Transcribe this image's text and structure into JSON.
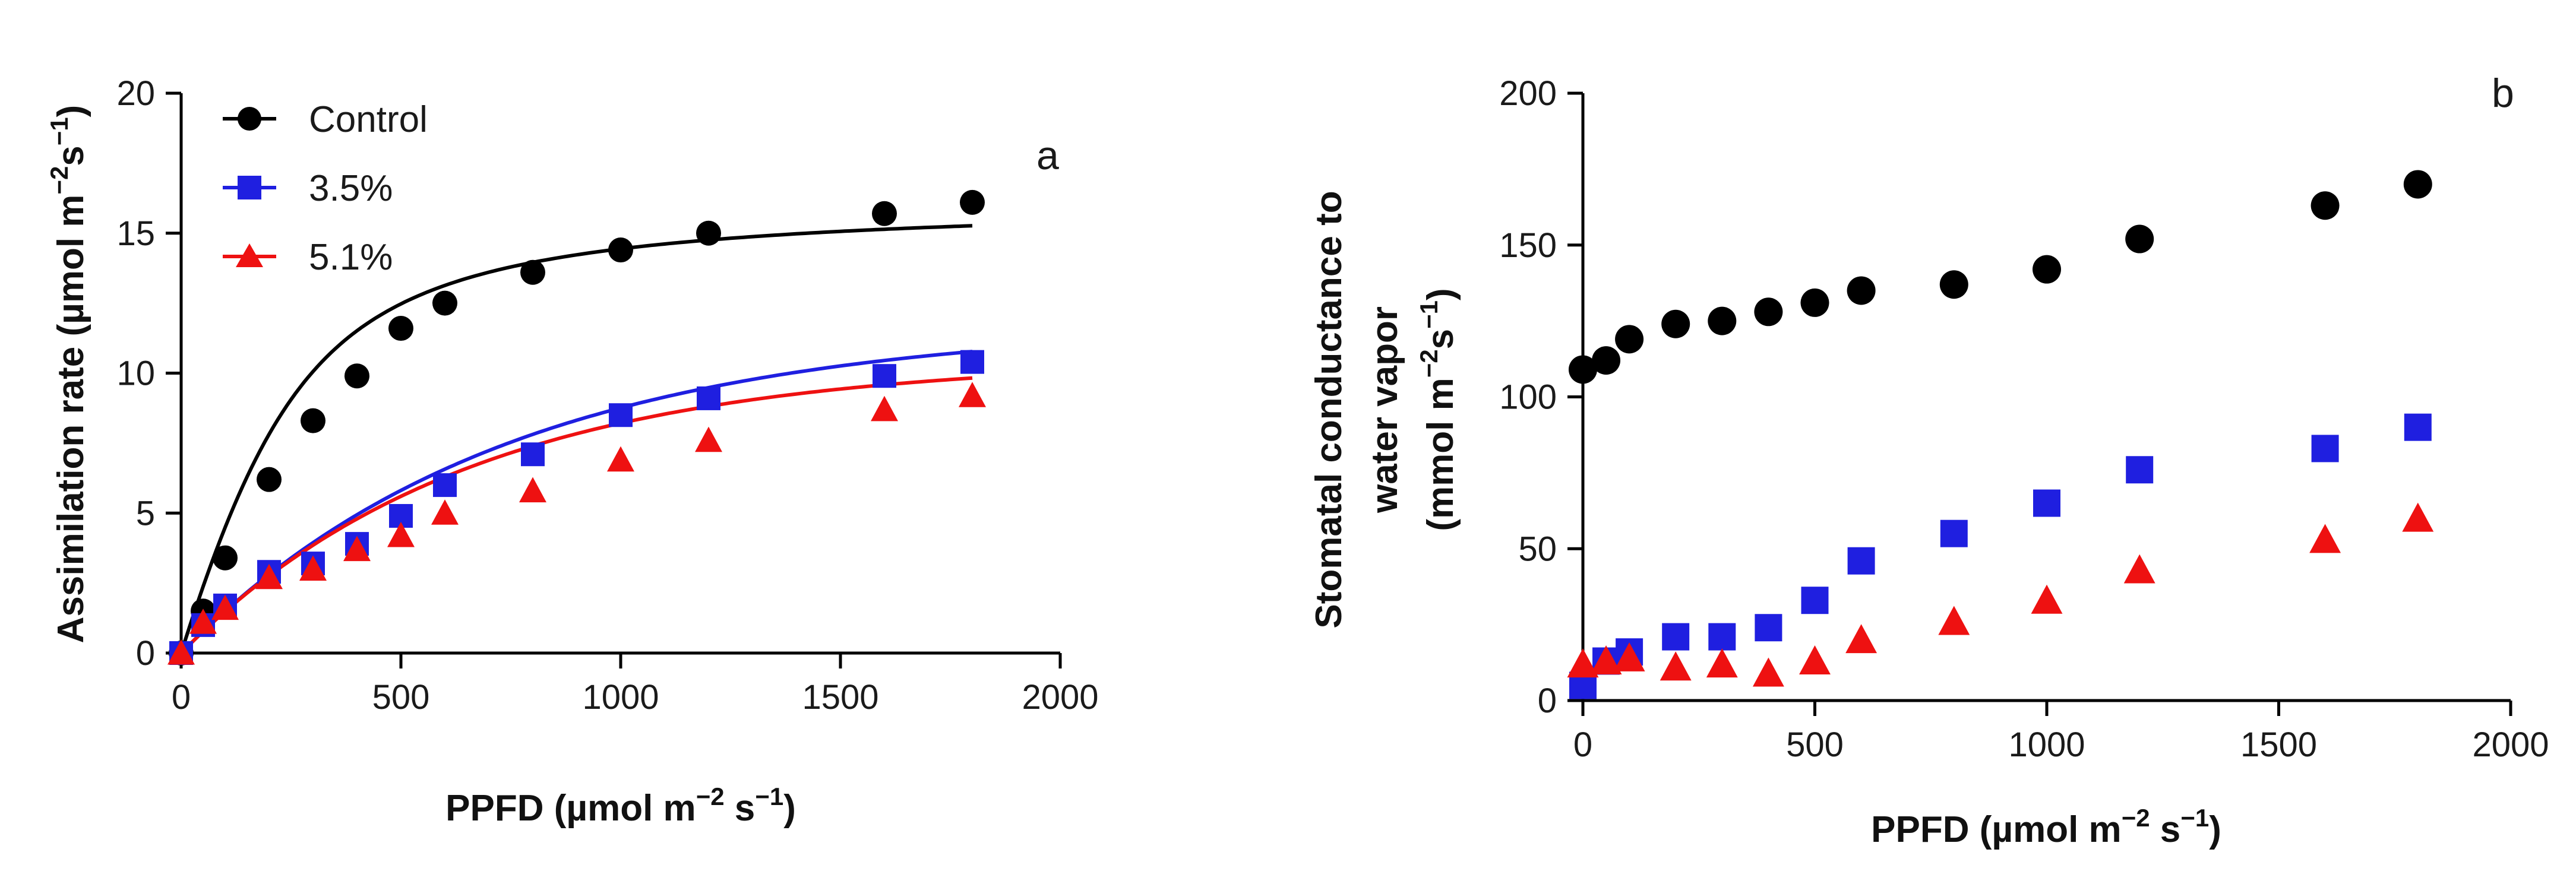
{
  "chart_data": [
    {
      "type": "line",
      "panel": "a",
      "xlabel": "PPFD (µmol m",
      "xlabel_sup": "−2",
      "xlabel_mid": " s",
      "xlabel_sup2": "−1",
      "xlabel_end": ")",
      "ylabel": "Assimilation rate (µmol m",
      "ylabel_sup": "−2",
      "ylabel_mid": "s",
      "ylabel_sup2": "−1",
      "ylabel_end": ")",
      "xlim": [
        0,
        2000
      ],
      "ylim": [
        0,
        20
      ],
      "xticks": [
        "0",
        "500",
        "1000",
        "1500",
        "2000"
      ],
      "yticks": [
        "0",
        "5",
        "10",
        "15",
        "20"
      ],
      "legend_position": "top-left",
      "series": [
        {
          "name": "Control",
          "color": "#000000",
          "marker": "circle",
          "x": [
            0,
            50,
            100,
            200,
            300,
            400,
            500,
            600,
            800,
            1000,
            1200,
            1600,
            1800
          ],
          "y": [
            0,
            1.5,
            3.4,
            6.2,
            8.3,
            9.9,
            11.6,
            12.5,
            13.6,
            14.4,
            15.0,
            15.7,
            16.1
          ],
          "fit": {
            "amax": 16.2,
            "phi": 0.05,
            "theta": 0.7
          }
        },
        {
          "name": "3.5%",
          "color": "#1f1fe0",
          "marker": "square",
          "x": [
            0,
            50,
            100,
            200,
            300,
            400,
            500,
            600,
            800,
            1000,
            1200,
            1600,
            1800
          ],
          "y": [
            0,
            1.0,
            1.7,
            2.9,
            3.2,
            3.9,
            4.9,
            6.0,
            7.1,
            8.5,
            9.1,
            9.9,
            10.4
          ],
          "fit": {
            "amax": 11.8,
            "phi": 0.016,
            "theta": 0
          }
        },
        {
          "name": "5.1%",
          "color": "#ee1111",
          "marker": "triangle",
          "x": [
            0,
            50,
            100,
            200,
            300,
            400,
            500,
            600,
            800,
            1000,
            1200,
            1600,
            1800
          ],
          "y": [
            0,
            1.1,
            1.6,
            2.7,
            3.0,
            3.7,
            4.2,
            5.0,
            5.8,
            6.9,
            7.6,
            8.7,
            9.2
          ],
          "fit": {
            "amax": 10.5,
            "phi": 0.016,
            "theta": 0
          }
        }
      ]
    },
    {
      "type": "scatter",
      "panel": "b",
      "xlabel": "PPFD (µmol m",
      "xlabel_sup": "−2",
      "xlabel_mid": " s",
      "xlabel_sup2": "−1",
      "xlabel_end": ")",
      "ylabel_line1": "Stomatal conductance to",
      "ylabel_line2": "water vapor",
      "ylabel_line3": "(mmol m",
      "ylabel_line3_sup": "−2",
      "ylabel_line3_mid": "s",
      "ylabel_line3_sup2": "−1",
      "ylabel_line3_end": ")",
      "xlim": [
        0,
        2000
      ],
      "ylim": [
        0,
        200
      ],
      "xticks": [
        "0",
        "500",
        "1000",
        "1500",
        "2000"
      ],
      "yticks": [
        "0",
        "50",
        "100",
        "150",
        "200"
      ],
      "series": [
        {
          "name": "Control",
          "color": "#000000",
          "marker": "circle",
          "x": [
            0,
            50,
            100,
            200,
            300,
            400,
            500,
            600,
            800,
            1000,
            1200,
            1600,
            1800
          ],
          "y": [
            109,
            112,
            119,
            124,
            125,
            128,
            131,
            135,
            137,
            142,
            152,
            163,
            170
          ]
        },
        {
          "name": "3.5%",
          "color": "#1f1fe0",
          "marker": "square",
          "x": [
            0,
            50,
            100,
            200,
            300,
            400,
            500,
            600,
            800,
            1000,
            1200,
            1600,
            1800
          ],
          "y": [
            5,
            13,
            16,
            21,
            21,
            24,
            33,
            46,
            55,
            65,
            76,
            83,
            90
          ]
        },
        {
          "name": "5.1%",
          "color": "#ee1111",
          "marker": "triangle",
          "x": [
            0,
            50,
            100,
            200,
            300,
            400,
            500,
            600,
            800,
            1000,
            1200,
            1600,
            1800
          ],
          "y": [
            12,
            13,
            14,
            11,
            12,
            9,
            13,
            20,
            26,
            33,
            43,
            53,
            60
          ]
        }
      ]
    }
  ]
}
